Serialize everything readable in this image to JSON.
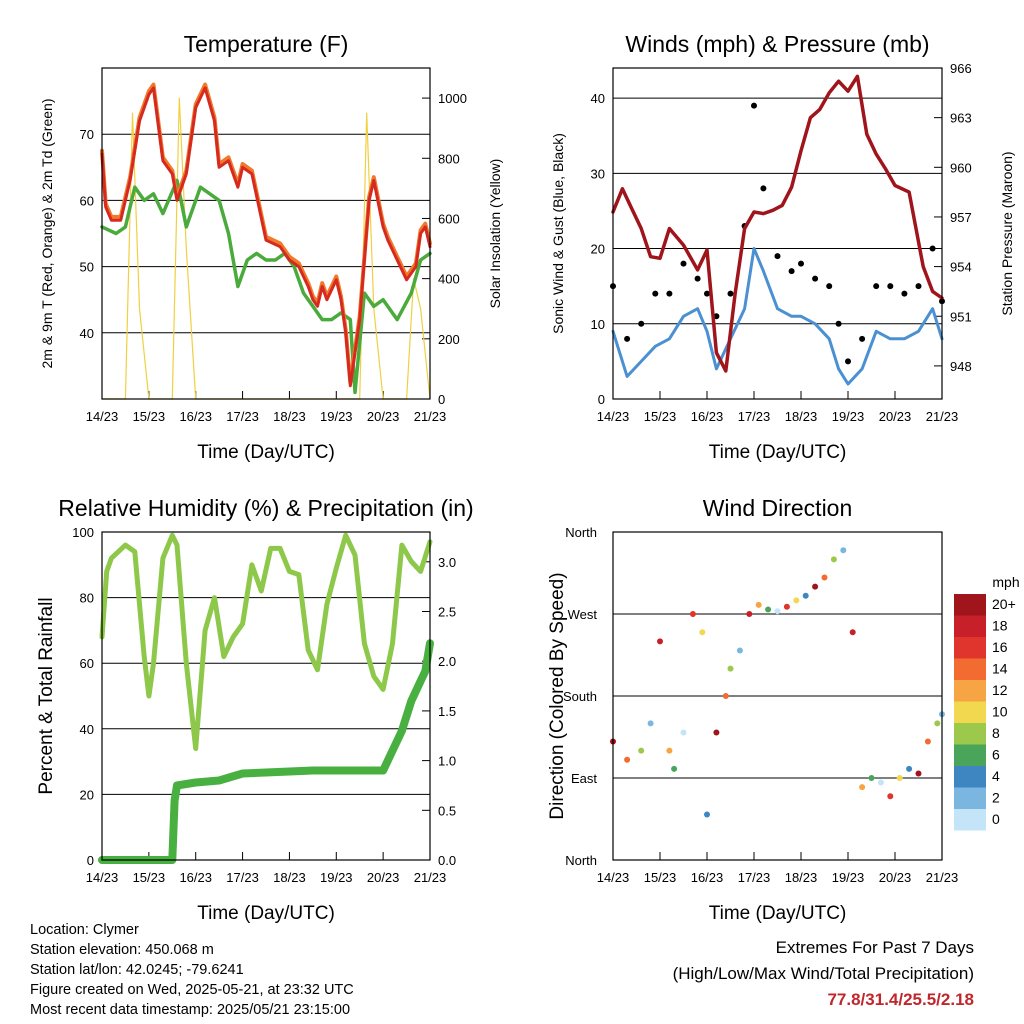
{
  "x_tick_labels": [
    "14/23",
    "15/23",
    "16/23",
    "17/23",
    "18/23",
    "19/23",
    "20/23",
    "21/23"
  ],
  "x_axis_label": "Time (Day/UTC)",
  "temperature": {
    "title": "Temperature (F)",
    "ylabel_left": "2m & 9m T (Red, Orange) & 2m Td (Green)",
    "ylabel_right": "Solar Insolation (Yellow)"
  },
  "winds": {
    "title": "Winds (mph) & Pressure (mb)",
    "ylabel_left": "Sonic Wind & Gust (Blue, Black)",
    "ylabel_right": "Station Pressure (Maroon)"
  },
  "humidity": {
    "title": "Relative Humidity (%) & Precipitation (in)",
    "ylabel_left": "Percent & Total Rainfall"
  },
  "direction": {
    "title": "Wind Direction",
    "ylabel_left": "Direction (Colored By Speed)",
    "legend_title": "mph",
    "legend_labels": [
      "20+",
      "18",
      "16",
      "14",
      "12",
      "10",
      "8",
      "6",
      "4",
      "2",
      "0"
    ],
    "legend_colors": [
      "#a0141c",
      "#c8202a",
      "#e0352c",
      "#f26b30",
      "#f7a544",
      "#f2d84e",
      "#9cc94c",
      "#4aa55a",
      "#3e86c2",
      "#7ab6e0",
      "#c4e4f7"
    ]
  },
  "info": {
    "location": "Location: Clymer",
    "elevation": "Station elevation: 450.068 m",
    "latlon": "Station lat/lon: 42.0245; -79.6241",
    "created": "Figure created on Wed, 2025-05-21, at 23:32 UTC",
    "recent": "Most recent data timestamp: 2025/05/21 23:15:00"
  },
  "extremes": {
    "title": "Extremes For Past 7 Days",
    "subtitle": "(High/Low/Max Wind/Total Precipitation)",
    "values": "77.8/31.4/25.5/2.18"
  },
  "chart_data": [
    {
      "type": "line",
      "title": "Temperature (F)",
      "xlabel": "Time (Day/UTC)",
      "ylabel": "2m & 9m T (Red, Orange) & 2m Td (Green)",
      "y2label": "Solar Insolation (Yellow)",
      "xlim": [
        0,
        7
      ],
      "ylim": [
        30,
        80
      ],
      "y2lim": [
        0,
        1100
      ],
      "yticks": [
        40,
        50,
        60,
        70
      ],
      "y2ticks": [
        0,
        200,
        400,
        600,
        800,
        1000
      ],
      "grid": true,
      "series": [
        {
          "color": "#d62a20",
          "x": [
            0,
            0.08,
            0.2,
            0.4,
            0.6,
            0.8,
            1.0,
            1.1,
            1.3,
            1.5,
            1.6,
            1.8,
            2.0,
            2.2,
            2.4,
            2.5,
            2.7,
            2.9,
            3.0,
            3.2,
            3.5,
            3.8,
            4.0,
            4.2,
            4.4,
            4.5,
            4.6,
            4.7,
            4.8,
            5.0,
            5.1,
            5.2,
            5.3,
            5.5,
            5.7,
            5.8,
            6.0,
            6.1,
            6.3,
            6.5,
            6.7,
            6.8,
            6.9,
            7.0
          ],
          "values": [
            67,
            59,
            57,
            57,
            63,
            72,
            76,
            77,
            66,
            64,
            60,
            64,
            74,
            77,
            72,
            65,
            66,
            62,
            65,
            64,
            54,
            53,
            51,
            50,
            47,
            45,
            44,
            47,
            45,
            48,
            45,
            40,
            32,
            42,
            60,
            63,
            56,
            54,
            51,
            48,
            50,
            55,
            56,
            53
          ]
        },
        {
          "color": "#f07a2a",
          "x": [
            0,
            0.08,
            0.2,
            0.4,
            0.6,
            0.8,
            1.0,
            1.1,
            1.3,
            1.5,
            1.6,
            1.8,
            2.0,
            2.2,
            2.4,
            2.5,
            2.7,
            2.9,
            3.0,
            3.2,
            3.5,
            3.8,
            4.0,
            4.2,
            4.4,
            4.5,
            4.6,
            4.7,
            4.8,
            5.0,
            5.1,
            5.2,
            5.3,
            5.5,
            5.7,
            5.8,
            6.0,
            6.1,
            6.3,
            6.5,
            6.7,
            6.8,
            6.9,
            7.0
          ],
          "values": [
            67.5,
            59.5,
            57.5,
            57.5,
            63.5,
            72.5,
            76.5,
            77.5,
            66.5,
            64.5,
            60.5,
            64.5,
            74.5,
            77.5,
            72.5,
            65.5,
            66.5,
            62.5,
            65.5,
            64.5,
            54.5,
            53.5,
            51.5,
            50.5,
            47.5,
            45.5,
            44.5,
            47.5,
            45.5,
            48.5,
            45.5,
            40.5,
            32.5,
            42.5,
            60.5,
            63.5,
            56.5,
            54.5,
            51.5,
            48.5,
            50.5,
            55.5,
            56.5,
            53.5
          ]
        },
        {
          "color": "#4aaa3c",
          "x": [
            0,
            0.3,
            0.5,
            0.7,
            0.9,
            1.1,
            1.3,
            1.6,
            1.8,
            2.1,
            2.3,
            2.5,
            2.7,
            2.9,
            3.1,
            3.3,
            3.5,
            3.7,
            3.9,
            4.1,
            4.3,
            4.5,
            4.7,
            4.9,
            5.1,
            5.3,
            5.4,
            5.6,
            5.8,
            6.0,
            6.3,
            6.6,
            6.8,
            7.0
          ],
          "values": [
            56,
            55,
            56,
            62,
            60,
            61,
            58,
            63,
            56,
            62,
            61,
            60,
            55,
            47,
            51,
            52,
            51,
            51,
            52,
            50,
            46,
            44,
            42,
            42,
            43,
            42,
            31,
            46,
            44,
            45,
            42,
            46,
            51,
            52
          ]
        },
        {
          "color": "#f0d040",
          "x": [
            0,
            0.5,
            0.65,
            0.8,
            1.0,
            1.5,
            1.65,
            1.8,
            2.0,
            2.5,
            3.5,
            4.5,
            5.5,
            5.65,
            5.8,
            6.0,
            6.5,
            6.65,
            6.8,
            7.0
          ],
          "values": [
            0,
            0,
            950,
            300,
            0,
            0,
            1000,
            500,
            0,
            0,
            0,
            0,
            0,
            950,
            300,
            0,
            0,
            400,
            300,
            0
          ]
        }
      ]
    },
    {
      "type": "scatter",
      "title": "Winds (mph) & Pressure (mb)",
      "xlabel": "Time (Day/UTC)",
      "ylabel": "Sonic Wind & Gust (Blue, Black)",
      "y2label": "Station Pressure (Maroon)",
      "xlim": [
        0,
        7
      ],
      "ylim": [
        0,
        44
      ],
      "y2lim": [
        946,
        966
      ],
      "yticks": [
        0,
        10,
        20,
        30,
        40
      ],
      "y2ticks": [
        948,
        951,
        954,
        957,
        960,
        963,
        966
      ],
      "grid": true,
      "series": [
        {
          "color": "#a0141c",
          "type": "line",
          "x": [
            0,
            0.2,
            0.4,
            0.6,
            0.8,
            1.0,
            1.2,
            1.5,
            1.8,
            2.0,
            2.2,
            2.4,
            2.6,
            2.8,
            3.0,
            3.2,
            3.4,
            3.6,
            3.8,
            4.0,
            4.2,
            4.4,
            4.6,
            4.8,
            5.0,
            5.2,
            5.4,
            5.6,
            5.8,
            6.0,
            6.3,
            6.6,
            6.8,
            7.0
          ],
          "values": [
            957.3,
            958.7,
            957.5,
            956.3,
            954.6,
            954.5,
            956.3,
            955.3,
            953.8,
            955.0,
            948.8,
            947.7,
            952.4,
            956.3,
            957.3,
            957.2,
            957.4,
            957.7,
            958.8,
            961.0,
            963.0,
            963.5,
            964.5,
            965.2,
            964.6,
            965.5,
            962.0,
            960.8,
            959.9,
            958.9,
            958.5,
            954.0,
            952.5,
            952.1
          ]
        },
        {
          "color": "#000000",
          "x": [
            0,
            0.3,
            0.6,
            0.9,
            1.2,
            1.5,
            1.8,
            2.0,
            2.2,
            2.5,
            2.8,
            3.0,
            3.2,
            3.5,
            3.8,
            4.0,
            4.3,
            4.6,
            4.8,
            5.0,
            5.3,
            5.6,
            5.9,
            6.2,
            6.5,
            6.8,
            7.0
          ],
          "values": [
            15,
            8,
            10,
            14,
            14,
            18,
            16,
            14,
            11,
            14,
            23,
            39,
            28,
            19,
            17,
            18,
            16,
            15,
            10,
            5,
            8,
            15,
            15,
            14,
            15,
            20,
            13
          ]
        },
        {
          "color": "#4a90d2",
          "x": [
            0,
            0.3,
            0.6,
            0.9,
            1.2,
            1.5,
            1.8,
            2.0,
            2.2,
            2.5,
            2.8,
            3.0,
            3.2,
            3.5,
            3.8,
            4.0,
            4.3,
            4.6,
            4.8,
            5.0,
            5.3,
            5.6,
            5.9,
            6.2,
            6.5,
            6.8,
            7.0
          ],
          "values": [
            9,
            3,
            5,
            7,
            8,
            11,
            12,
            9,
            4,
            8,
            12,
            20,
            17,
            12,
            11,
            11,
            10,
            8,
            4,
            2,
            4,
            9,
            8,
            8,
            9,
            12,
            8
          ]
        }
      ]
    },
    {
      "type": "line",
      "title": "Relative Humidity (%) & Precipitation (in)",
      "xlabel": "Time (Day/UTC)",
      "ylabel": "Percent & Total Rainfall",
      "xlim": [
        0,
        7
      ],
      "ylim": [
        0,
        100
      ],
      "y2lim": [
        0,
        3.3
      ],
      "yticks": [
        0,
        20,
        40,
        60,
        80,
        100
      ],
      "y2ticks": [
        0.0,
        0.5,
        1.0,
        1.5,
        2.0,
        2.5,
        3.0
      ],
      "grid": true,
      "series": [
        {
          "color": "#8ec84a",
          "x": [
            0,
            0.1,
            0.2,
            0.5,
            0.7,
            0.9,
            1.0,
            1.1,
            1.3,
            1.5,
            1.6,
            1.8,
            2.0,
            2.2,
            2.4,
            2.6,
            2.8,
            3.0,
            3.2,
            3.4,
            3.6,
            3.8,
            4.0,
            4.2,
            4.4,
            4.6,
            4.8,
            5.0,
            5.2,
            5.4,
            5.6,
            5.8,
            6.0,
            6.2,
            6.4,
            6.6,
            6.8,
            7.0
          ],
          "values": [
            68,
            88,
            92,
            96,
            94,
            62,
            50,
            60,
            92,
            99,
            96,
            60,
            34,
            70,
            80,
            62,
            68,
            72,
            90,
            82,
            95,
            95,
            88,
            87,
            64,
            58,
            78,
            89,
            99,
            93,
            66,
            56,
            52,
            66,
            96,
            91,
            88,
            97
          ]
        },
        {
          "color": "#48b040",
          "x": [
            0,
            0.5,
            1.0,
            1.5,
            1.55,
            1.6,
            2.0,
            2.5,
            3.0,
            3.5,
            4.0,
            4.5,
            5.0,
            5.5,
            6.0,
            6.2,
            6.4,
            6.6,
            6.8,
            6.9,
            7.0
          ],
          "values": [
            0.0,
            0.0,
            0.0,
            0.0,
            0.6,
            0.75,
            0.78,
            0.8,
            0.87,
            0.88,
            0.89,
            0.9,
            0.9,
            0.9,
            0.9,
            1.1,
            1.3,
            1.6,
            1.8,
            1.9,
            2.18
          ]
        }
      ]
    },
    {
      "type": "scatter",
      "title": "Wind Direction",
      "xlabel": "Time (Day/UTC)",
      "ylabel": "Direction (Colored By Speed)",
      "xlim": [
        0,
        7
      ],
      "ylim": [
        0,
        360
      ],
      "ytick_labels": [
        "North",
        "East",
        "South",
        "West",
        "North"
      ],
      "legend_title": "mph",
      "grid": true,
      "series": [
        {
          "name": "direction",
          "x": [
            0,
            0.3,
            0.6,
            0.8,
            1.0,
            1.2,
            1.3,
            1.5,
            1.7,
            1.9,
            2.0,
            2.2,
            2.4,
            2.5,
            2.7,
            2.9,
            3.1,
            3.3,
            3.5,
            3.7,
            3.9,
            4.1,
            4.3,
            4.5,
            4.7,
            4.9,
            5.1,
            5.3,
            5.5,
            5.7,
            5.9,
            6.1,
            6.3,
            6.5,
            6.7,
            6.9,
            7.0
          ],
          "values": [
            130,
            110,
            120,
            150,
            240,
            120,
            100,
            140,
            270,
            250,
            50,
            140,
            180,
            210,
            230,
            270,
            280,
            275,
            273,
            278,
            285,
            290,
            300,
            310,
            330,
            340,
            250,
            80,
            90,
            85,
            70,
            90,
            100,
            95,
            130,
            150,
            160
          ]
        }
      ]
    }
  ]
}
